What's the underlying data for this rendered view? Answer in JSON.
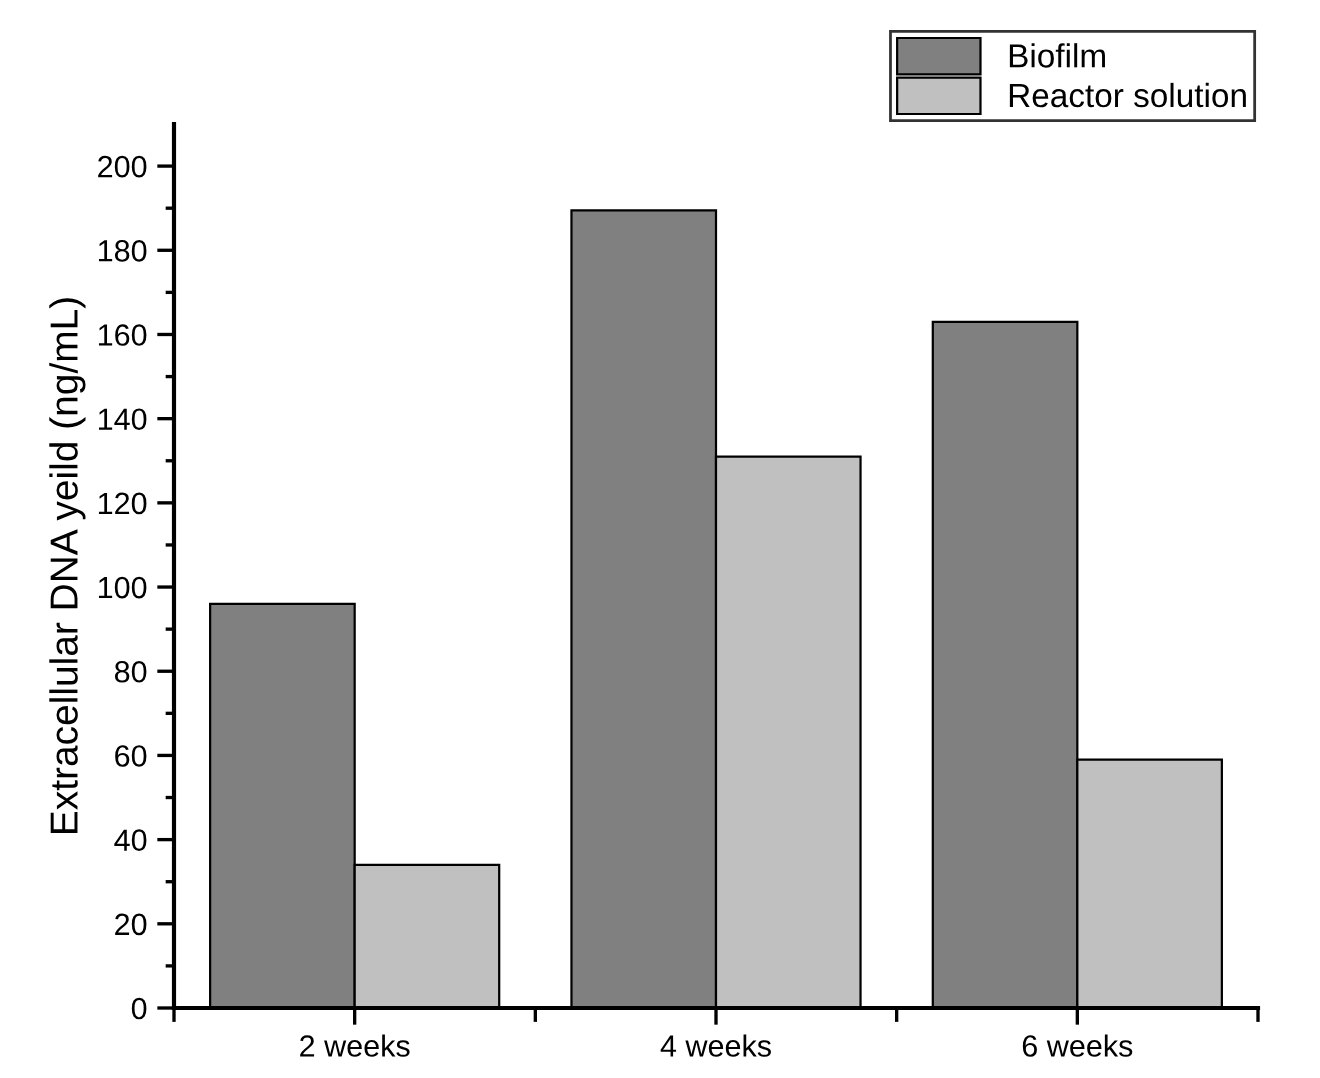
{
  "chart_data": {
    "type": "bar",
    "ylabel": "Extracellular DNA yeild (ng/mL)",
    "categories": [
      "2 weeks",
      "4 weeks",
      "6 weeks"
    ],
    "series": [
      {
        "name": "Biofilm",
        "color": "#808080",
        "values": [
          96,
          189.5,
          163
        ]
      },
      {
        "name": "Reactor solution",
        "color": "#c0c0c0",
        "values": [
          34,
          131,
          59
        ]
      }
    ],
    "ylim": [
      0,
      210
    ],
    "yticks": [
      0,
      20,
      40,
      60,
      80,
      100,
      120,
      140,
      160,
      180,
      200
    ],
    "grid": false,
    "legend": "top right"
  }
}
